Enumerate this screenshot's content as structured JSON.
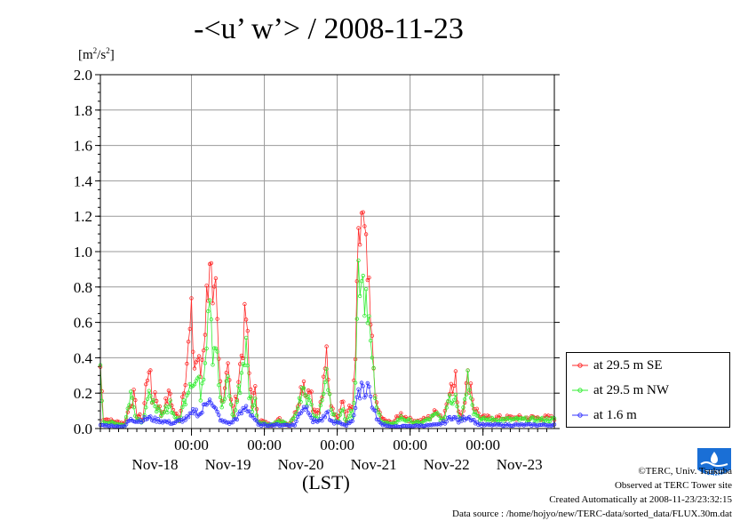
{
  "title": "-<u’ w’> / 2008-11-23",
  "y_unit": "[m²/s²]",
  "x_axis_label": "(LST)",
  "time_tick_label": "00:00",
  "credits": {
    "copyright": "©TERC, Univ. Tsukuba",
    "site": "Observed at TERC Tower site",
    "created": "Created Automatically at 2008-11-23/23:32:15",
    "source": "Data source : /home/hojyo/new/TERC-data/sorted_data/FLUX.30m.dat"
  },
  "logo_text": "TERC",
  "chart_data": {
    "type": "line",
    "title": "-<u’ w’> / 2008-11-23",
    "ylabel": "[m²/s²]",
    "xlabel": "(LST)",
    "ylim": [
      0,
      2.0
    ],
    "xlim": [
      "2008-11-17 18:00",
      "2008-11-23 23:30"
    ],
    "yticks": [
      "0.0",
      "0.2",
      "0.4",
      "0.6",
      "0.8",
      "1.0",
      "1.2",
      "1.4",
      "1.6",
      "1.8",
      "2.0"
    ],
    "day_labels": [
      "Nov-18",
      "Nov-19",
      "Nov-20",
      "Nov-21",
      "Nov-22",
      "Nov-23"
    ],
    "grid": true,
    "legend_position": "right",
    "colors": {
      "se": "#ff2a2a",
      "nw": "#33ee33",
      "low": "#3333ff"
    },
    "series": [
      {
        "name": "at 29.5 m SE",
        "color": "#ff2a2a",
        "anchors": [
          [
            "2008-11-17 18:00",
            0.35
          ],
          [
            "2008-11-17 19:00",
            0.06
          ],
          [
            "2008-11-17 22:00",
            0.04
          ],
          [
            "2008-11-18 02:00",
            0.03
          ],
          [
            "2008-11-18 04:00",
            0.15
          ],
          [
            "2008-11-18 05:00",
            0.18
          ],
          [
            "2008-11-18 06:00",
            0.08
          ],
          [
            "2008-11-18 08:00",
            0.05
          ],
          [
            "2008-11-18 09:00",
            0.23
          ],
          [
            "2008-11-18 10:00",
            0.38
          ],
          [
            "2008-11-18 11:00",
            0.15
          ],
          [
            "2008-11-18 12:00",
            0.2
          ],
          [
            "2008-11-18 14:00",
            0.08
          ],
          [
            "2008-11-18 17:00",
            0.2
          ],
          [
            "2008-11-18 18:00",
            0.1
          ],
          [
            "2008-11-18 20:00",
            0.05
          ],
          [
            "2008-11-18 23:00",
            0.45
          ],
          [
            "2008-11-19 00:00",
            0.6
          ],
          [
            "2008-11-19 01:00",
            0.35
          ],
          [
            "2008-11-19 02:00",
            0.4
          ],
          [
            "2008-11-19 03:00",
            0.3
          ],
          [
            "2008-11-19 04:00",
            0.5
          ],
          [
            "2008-11-19 05:00",
            0.72
          ],
          [
            "2008-11-19 06:00",
            1.05
          ],
          [
            "2008-11-19 07:00",
            0.6
          ],
          [
            "2008-11-19 08:00",
            0.7
          ],
          [
            "2008-11-19 09:00",
            0.35
          ],
          [
            "2008-11-19 10:00",
            0.15
          ],
          [
            "2008-11-19 11:00",
            0.25
          ],
          [
            "2008-11-19 12:00",
            0.43
          ],
          [
            "2008-11-19 13:00",
            0.15
          ],
          [
            "2008-11-19 14:00",
            0.08
          ],
          [
            "2008-11-19 16:00",
            0.35
          ],
          [
            "2008-11-19 17:00",
            0.5
          ],
          [
            "2008-11-19 18:00",
            0.63
          ],
          [
            "2008-11-19 19:00",
            0.3
          ],
          [
            "2008-11-19 20:00",
            0.15
          ],
          [
            "2008-11-19 21:00",
            0.2
          ],
          [
            "2008-11-19 22:00",
            0.05
          ],
          [
            "2008-11-20 02:00",
            0.02
          ],
          [
            "2008-11-20 05:00",
            0.05
          ],
          [
            "2008-11-20 08:00",
            0.02
          ],
          [
            "2008-11-20 10:00",
            0.08
          ],
          [
            "2008-11-20 11:00",
            0.15
          ],
          [
            "2008-11-20 12:00",
            0.22
          ],
          [
            "2008-11-20 13:00",
            0.28
          ],
          [
            "2008-11-20 14:00",
            0.18
          ],
          [
            "2008-11-20 15:00",
            0.27
          ],
          [
            "2008-11-20 16:00",
            0.1
          ],
          [
            "2008-11-20 18:00",
            0.08
          ],
          [
            "2008-11-20 19:00",
            0.2
          ],
          [
            "2008-11-20 20:00",
            0.43
          ],
          [
            "2008-11-20 21:00",
            0.35
          ],
          [
            "2008-11-20 22:00",
            0.15
          ],
          [
            "2008-11-21 00:00",
            0.05
          ],
          [
            "2008-11-21 02:00",
            0.15
          ],
          [
            "2008-11-21 03:00",
            0.05
          ],
          [
            "2008-11-21 04:00",
            0.12
          ],
          [
            "2008-11-21 05:00",
            0.1
          ],
          [
            "2008-11-21 06:00",
            0.4
          ],
          [
            "2008-11-21 07:00",
            0.95
          ],
          [
            "2008-11-21 08:00",
            1.22
          ],
          [
            "2008-11-21 09:00",
            1.0
          ],
          [
            "2008-11-21 10:00",
            0.82
          ],
          [
            "2008-11-21 11:00",
            0.55
          ],
          [
            "2008-11-21 12:00",
            0.35
          ],
          [
            "2008-11-21 13:00",
            0.12
          ],
          [
            "2008-11-21 15:00",
            0.05
          ],
          [
            "2008-11-21 18:00",
            0.03
          ],
          [
            "2008-11-21 21:00",
            0.08
          ],
          [
            "2008-11-22 00:00",
            0.05
          ],
          [
            "2008-11-22 03:00",
            0.04
          ],
          [
            "2008-11-22 06:00",
            0.06
          ],
          [
            "2008-11-22 09:00",
            0.1
          ],
          [
            "2008-11-22 11:00",
            0.05
          ],
          [
            "2008-11-22 13:00",
            0.25
          ],
          [
            "2008-11-22 14:00",
            0.2
          ],
          [
            "2008-11-22 15:00",
            0.27
          ],
          [
            "2008-11-22 16:00",
            0.1
          ],
          [
            "2008-11-22 17:00",
            0.08
          ],
          [
            "2008-11-22 19:00",
            0.28
          ],
          [
            "2008-11-22 20:00",
            0.25
          ],
          [
            "2008-11-22 21:00",
            0.12
          ],
          [
            "2008-11-22 22:00",
            0.1
          ],
          [
            "2008-11-22 23:30",
            0.06
          ]
        ]
      },
      {
        "name": "at 29.5 m NW",
        "color": "#33ee33",
        "anchors": [
          [
            "2008-11-17 18:00",
            0.3
          ],
          [
            "2008-11-17 19:00",
            0.04
          ],
          [
            "2008-11-17 22:00",
            0.03
          ],
          [
            "2008-11-18 02:00",
            0.02
          ],
          [
            "2008-11-18 04:00",
            0.2
          ],
          [
            "2008-11-18 05:00",
            0.12
          ],
          [
            "2008-11-18 06:00",
            0.06
          ],
          [
            "2008-11-18 08:00",
            0.04
          ],
          [
            "2008-11-18 09:00",
            0.15
          ],
          [
            "2008-11-18 10:00",
            0.22
          ],
          [
            "2008-11-18 11:00",
            0.12
          ],
          [
            "2008-11-18 12:00",
            0.15
          ],
          [
            "2008-11-18 14:00",
            0.06
          ],
          [
            "2008-11-18 17:00",
            0.15
          ],
          [
            "2008-11-18 18:00",
            0.08
          ],
          [
            "2008-11-18 20:00",
            0.04
          ],
          [
            "2008-11-18 23:00",
            0.25
          ],
          [
            "2008-11-19 00:00",
            0.3
          ],
          [
            "2008-11-19 01:00",
            0.25
          ],
          [
            "2008-11-19 02:00",
            0.28
          ],
          [
            "2008-11-19 03:00",
            0.2
          ],
          [
            "2008-11-19 04:00",
            0.35
          ],
          [
            "2008-11-19 05:00",
            0.55
          ],
          [
            "2008-11-19 06:00",
            0.9
          ],
          [
            "2008-11-19 07:00",
            0.45
          ],
          [
            "2008-11-19 08:00",
            0.5
          ],
          [
            "2008-11-19 09:00",
            0.25
          ],
          [
            "2008-11-19 10:00",
            0.1
          ],
          [
            "2008-11-19 11:00",
            0.18
          ],
          [
            "2008-11-19 12:00",
            0.3
          ],
          [
            "2008-11-19 13:00",
            0.12
          ],
          [
            "2008-11-19 14:00",
            0.06
          ],
          [
            "2008-11-19 16:00",
            0.25
          ],
          [
            "2008-11-19 17:00",
            0.38
          ],
          [
            "2008-11-19 18:00",
            0.45
          ],
          [
            "2008-11-19 19:00",
            0.2
          ],
          [
            "2008-11-19 20:00",
            0.12
          ],
          [
            "2008-11-19 21:00",
            0.15
          ],
          [
            "2008-11-19 22:00",
            0.04
          ],
          [
            "2008-11-20 02:00",
            0.02
          ],
          [
            "2008-11-20 05:00",
            0.04
          ],
          [
            "2008-11-20 08:00",
            0.02
          ],
          [
            "2008-11-20 10:00",
            0.06
          ],
          [
            "2008-11-20 11:00",
            0.12
          ],
          [
            "2008-11-20 12:00",
            0.18
          ],
          [
            "2008-11-20 13:00",
            0.22
          ],
          [
            "2008-11-20 14:00",
            0.14
          ],
          [
            "2008-11-20 15:00",
            0.2
          ],
          [
            "2008-11-20 16:00",
            0.08
          ],
          [
            "2008-11-20 18:00",
            0.06
          ],
          [
            "2008-11-20 19:00",
            0.15
          ],
          [
            "2008-11-20 20:00",
            0.3
          ],
          [
            "2008-11-20 21:00",
            0.25
          ],
          [
            "2008-11-20 22:00",
            0.1
          ],
          [
            "2008-11-21 00:00",
            0.04
          ],
          [
            "2008-11-21 02:00",
            0.1
          ],
          [
            "2008-11-21 03:00",
            0.04
          ],
          [
            "2008-11-21 04:00",
            0.08
          ],
          [
            "2008-11-21 05:00",
            0.08
          ],
          [
            "2008-11-21 06:00",
            0.3
          ],
          [
            "2008-11-21 07:00",
            0.9
          ],
          [
            "2008-11-21 08:00",
            0.95
          ],
          [
            "2008-11-21 09:00",
            0.8
          ],
          [
            "2008-11-21 10:00",
            0.78
          ],
          [
            "2008-11-21 11:00",
            0.45
          ],
          [
            "2008-11-21 12:00",
            0.28
          ],
          [
            "2008-11-21 13:00",
            0.1
          ],
          [
            "2008-11-21 15:00",
            0.04
          ],
          [
            "2008-11-21 18:00",
            0.02
          ],
          [
            "2008-11-21 21:00",
            0.06
          ],
          [
            "2008-11-22 00:00",
            0.04
          ],
          [
            "2008-11-22 03:00",
            0.03
          ],
          [
            "2008-11-22 06:00",
            0.05
          ],
          [
            "2008-11-22 09:00",
            0.08
          ],
          [
            "2008-11-22 11:00",
            0.04
          ],
          [
            "2008-11-22 13:00",
            0.2
          ],
          [
            "2008-11-22 14:00",
            0.15
          ],
          [
            "2008-11-22 15:00",
            0.22
          ],
          [
            "2008-11-22 16:00",
            0.08
          ],
          [
            "2008-11-22 17:00",
            0.06
          ],
          [
            "2008-11-22 19:00",
            0.3
          ],
          [
            "2008-11-22 20:00",
            0.22
          ],
          [
            "2008-11-22 21:00",
            0.1
          ],
          [
            "2008-11-22 22:00",
            0.08
          ],
          [
            "2008-11-22 23:30",
            0.05
          ]
        ]
      },
      {
        "name": "at 1.6 m",
        "color": "#3333ff",
        "anchors": [
          [
            "2008-11-17 18:00",
            0.02
          ],
          [
            "2008-11-18 02:00",
            0.01
          ],
          [
            "2008-11-18 04:00",
            0.06
          ],
          [
            "2008-11-18 06:00",
            0.04
          ],
          [
            "2008-11-18 10:00",
            0.06
          ],
          [
            "2008-11-18 12:00",
            0.05
          ],
          [
            "2008-11-18 18:00",
            0.03
          ],
          [
            "2008-11-18 23:00",
            0.06
          ],
          [
            "2008-11-19 01:00",
            0.1
          ],
          [
            "2008-11-19 03:00",
            0.08
          ],
          [
            "2008-11-19 05:00",
            0.15
          ],
          [
            "2008-11-19 06:00",
            0.2
          ],
          [
            "2008-11-19 07:00",
            0.12
          ],
          [
            "2008-11-19 08:00",
            0.1
          ],
          [
            "2008-11-19 10:00",
            0.04
          ],
          [
            "2008-11-19 13:00",
            0.03
          ],
          [
            "2008-11-19 16:00",
            0.08
          ],
          [
            "2008-11-19 18:00",
            0.12
          ],
          [
            "2008-11-19 19:00",
            0.1
          ],
          [
            "2008-11-19 21:00",
            0.05
          ],
          [
            "2008-11-19 22:00",
            0.02
          ],
          [
            "2008-11-20 10:00",
            0.02
          ],
          [
            "2008-11-20 12:00",
            0.1
          ],
          [
            "2008-11-20 13:00",
            0.13
          ],
          [
            "2008-11-20 15:00",
            0.1
          ],
          [
            "2008-11-20 16:00",
            0.04
          ],
          [
            "2008-11-20 19:00",
            0.05
          ],
          [
            "2008-11-20 21:00",
            0.08
          ],
          [
            "2008-11-20 22:00",
            0.04
          ],
          [
            "2008-11-21 03:00",
            0.02
          ],
          [
            "2008-11-21 05:00",
            0.05
          ],
          [
            "2008-11-21 07:00",
            0.18
          ],
          [
            "2008-11-21 08:00",
            0.27
          ],
          [
            "2008-11-21 09:00",
            0.2
          ],
          [
            "2008-11-21 10:00",
            0.26
          ],
          [
            "2008-11-21 12:00",
            0.1
          ],
          [
            "2008-11-21 14:00",
            0.03
          ],
          [
            "2008-11-21 18:00",
            0.01
          ],
          [
            "2008-11-22 09:00",
            0.02
          ],
          [
            "2008-11-22 12:00",
            0.04
          ],
          [
            "2008-11-22 13:00",
            0.06
          ],
          [
            "2008-11-22 14:00",
            0.07
          ],
          [
            "2008-11-22 16:00",
            0.04
          ],
          [
            "2008-11-22 19:00",
            0.07
          ],
          [
            "2008-11-22 20:00",
            0.06
          ],
          [
            "2008-11-22 22:00",
            0.03
          ],
          [
            "2008-11-22 23:30",
            0.02
          ]
        ]
      }
    ]
  }
}
